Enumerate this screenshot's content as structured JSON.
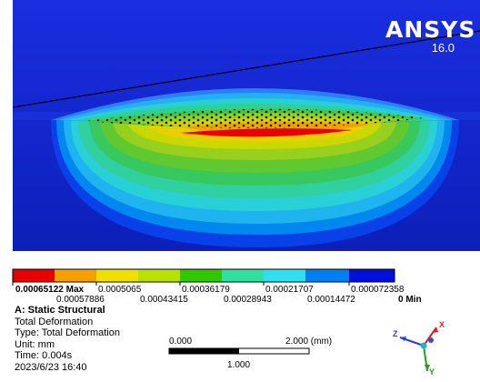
{
  "logo": {
    "brand": "ANSYS",
    "version": "16.0"
  },
  "legend": {
    "colors": [
      "#e80000",
      "#f5a000",
      "#f0e000",
      "#b8e000",
      "#30c800",
      "#30e0a0",
      "#30e0f0",
      "#0080f0",
      "#0010d8"
    ],
    "top_labels": [
      "0.00065122 Max",
      "0.0005065",
      "0.00036179",
      "0.00021707",
      "0.000072358"
    ],
    "bottom_labels": [
      "0.00057886",
      "0.00043415",
      "0.00028943",
      "0.00014472",
      "0 Min"
    ]
  },
  "info": {
    "title": "A: Static Structural",
    "line1": "Total Deformation",
    "line2": "Type: Total Deformation",
    "line3": "Unit: mm",
    "line4": "Time: 0.004s",
    "line5": "2023/6/23 16:40"
  },
  "scale": {
    "left": "0.000",
    "right": "2.000 (mm)",
    "mid": "1.000"
  },
  "triad": {
    "z": "Z",
    "x": "X",
    "y": "Y"
  }
}
